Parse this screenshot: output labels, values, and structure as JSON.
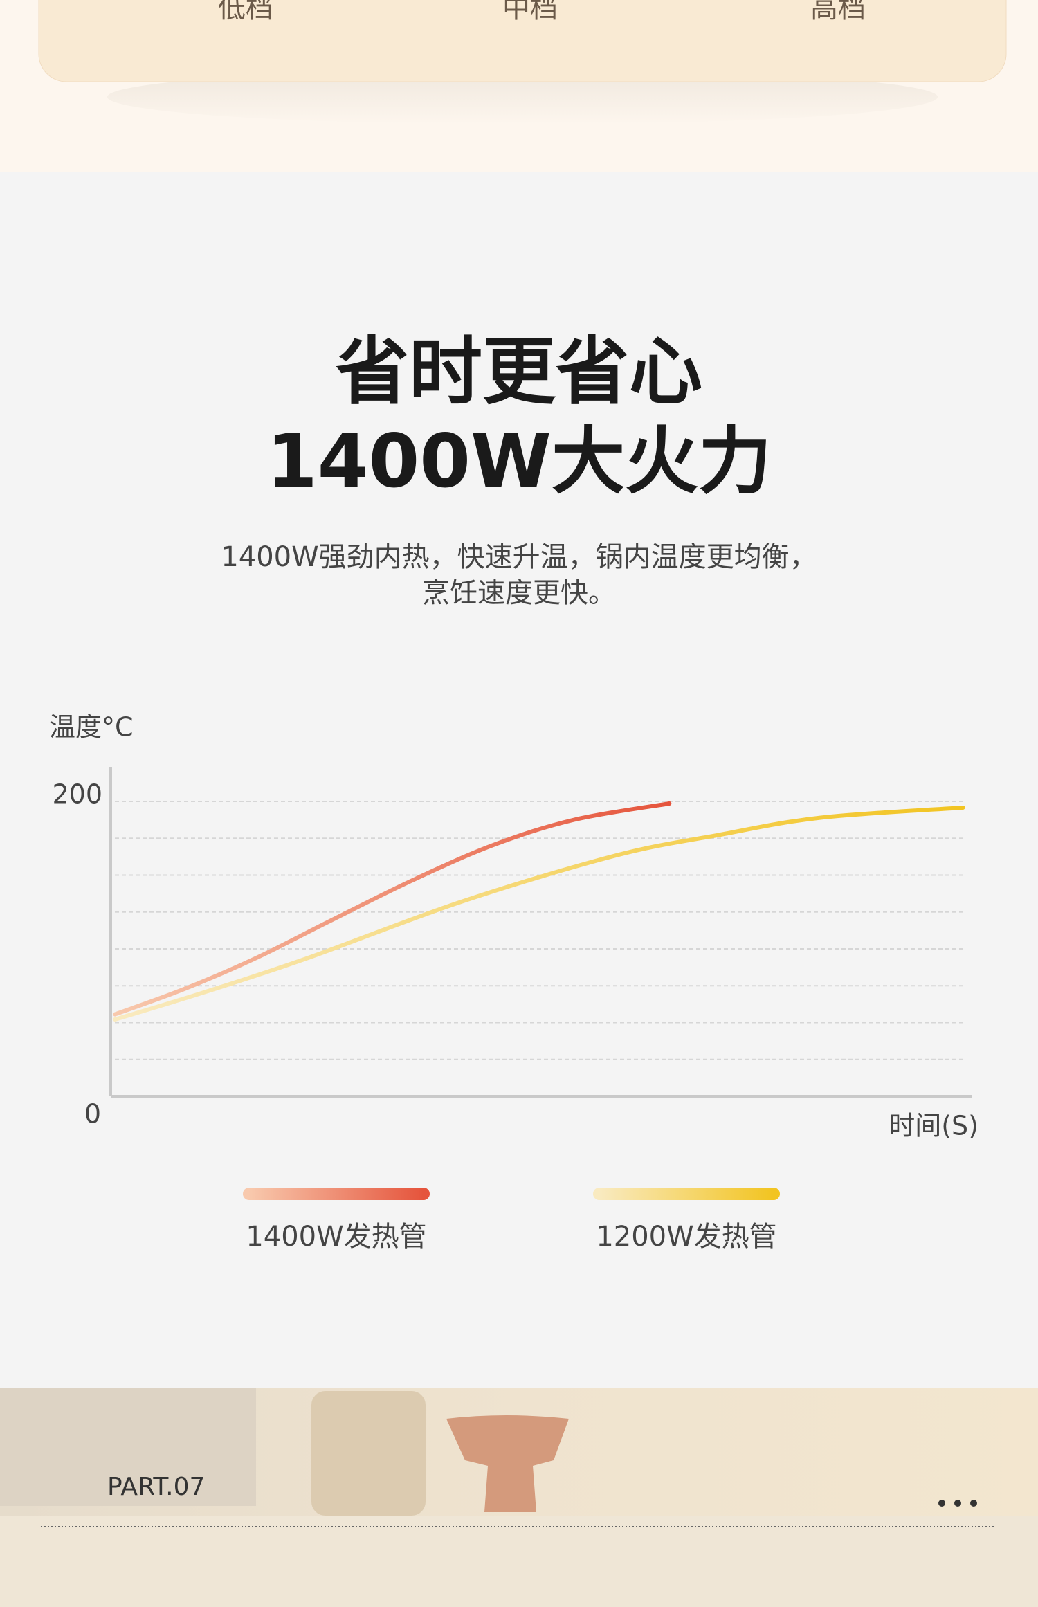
{
  "modes": [
    "低档",
    "中档",
    "高档"
  ],
  "headline": [
    "省时更省心",
    "1400W大火力"
  ],
  "description": [
    "1400W强劲内热，快速升温，锅内温度更均衡，",
    "烹饪速度更快。"
  ],
  "chart_data": {
    "type": "line",
    "ylabel": "温度°C",
    "xlabel": "时间(S)",
    "xlim": [
      0,
      100
    ],
    "ylim": [
      0,
      200
    ],
    "yticks": [
      0,
      200
    ],
    "grid_minor": [
      25,
      50,
      75,
      100,
      125,
      150,
      175
    ],
    "series": [
      {
        "name": "1400W发热管",
        "color": "#e5543c",
        "gradient_from": "#f8c9ad",
        "x": [
          0.5,
          8.6,
          16.9,
          25.2,
          34.8,
          44.3,
          53.8,
          64.9
        ],
        "values": [
          55.6,
          72.9,
          93.8,
          118.1,
          145.8,
          170.1,
          187.5,
          198.6
        ]
      },
      {
        "name": "1200W发热管",
        "color": "#f2c421",
        "gradient_from": "#f9eac0",
        "x": [
          0.5,
          11.0,
          22.9,
          40.7,
          58.6,
          70.5,
          82.4,
          99.0
        ],
        "values": [
          52.1,
          70.8,
          93.8,
          131.9,
          163.2,
          177.1,
          188.9,
          195.8
        ]
      }
    ]
  },
  "footer": {
    "part": "PART.07"
  }
}
